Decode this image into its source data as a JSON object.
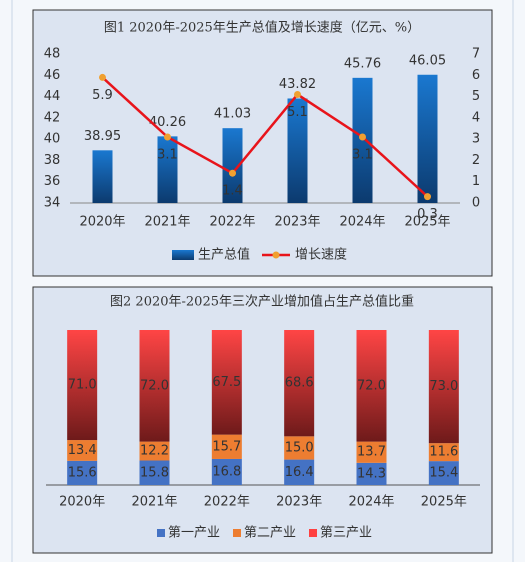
{
  "chart_data": [
    {
      "type": "combo",
      "title": "图1  2020年-2025年生产总值及增长速度（亿元、%）",
      "categories": [
        "2020年",
        "2021年",
        "2022年",
        "2023年",
        "2024年",
        "2025年"
      ],
      "series": [
        {
          "name": "生产总值",
          "color": "#1a6fc4",
          "values": [
            38.95,
            40.26,
            41.03,
            43.82,
            45.76,
            46.05
          ]
        },
        {
          "name": "增长速度",
          "color": "#e8141b",
          "marker_color": "#f0a030",
          "axis": "y2",
          "values": [
            5.9,
            3.1,
            1.4,
            5.1,
            3.1,
            0.3
          ]
        }
      ],
      "ylim": [
        34,
        48
      ],
      "yticks": [
        34,
        36,
        38,
        40,
        42,
        44,
        46,
        48
      ],
      "y2lim": [
        0,
        7
      ],
      "y2ticks": [
        0,
        1,
        2,
        3,
        4,
        5,
        6,
        7
      ]
    },
    {
      "type": "stacked-bar",
      "title": "图2  2020年-2025年三次产业增加值占生产总值比重",
      "categories": [
        "2020年",
        "2021年",
        "2022年",
        "2023年",
        "2024年",
        "2025年"
      ],
      "series": [
        {
          "name": "第一产业",
          "color": "#4472c4",
          "values": [
            15.6,
            15.8,
            16.8,
            16.4,
            14.3,
            15.4
          ],
          "value_labels": [
            "15.6",
            "15.8",
            "16.8",
            "16.4",
            "14.3",
            "15.4"
          ]
        },
        {
          "name": "第二产业",
          "color": "#ed7d31",
          "values": [
            13.4,
            12.2,
            15.7,
            15.0,
            13.7,
            11.6
          ],
          "value_labels": [
            "13.4",
            "12.2",
            "15.7",
            "15.0",
            "13.7",
            "11.6"
          ]
        },
        {
          "name": "第三产业",
          "color": "#ff4040",
          "values": [
            71.0,
            72.0,
            67.5,
            68.6,
            72.0,
            73.0
          ],
          "value_labels": [
            "71.0",
            "72.0",
            "67.5",
            "68.6",
            "72.0",
            "73.0"
          ]
        }
      ]
    }
  ]
}
